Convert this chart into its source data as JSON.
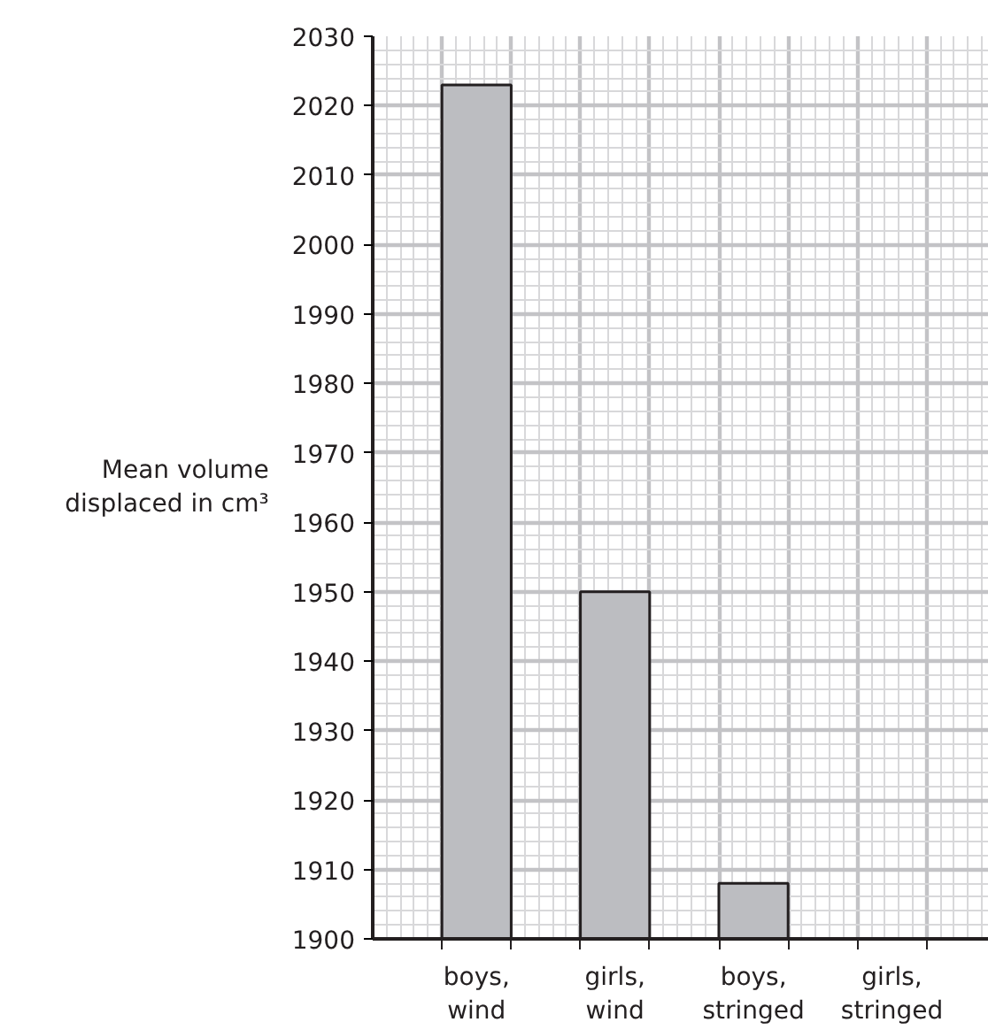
{
  "chart_data": {
    "type": "bar",
    "ylabel": "Mean volume displaced in cm³",
    "categories": [
      "boys, wind",
      "girls, wind",
      "boys, stringed",
      "girls, stringed"
    ],
    "values": [
      2023,
      1950,
      1908,
      null
    ],
    "color": "#bcbdc1",
    "ylim": [
      1900,
      2030
    ],
    "yticks": [
      1900,
      1910,
      1920,
      1930,
      1940,
      1950,
      1960,
      1970,
      1980,
      1990,
      2000,
      2010,
      2020,
      2030
    ],
    "grid": true
  }
}
